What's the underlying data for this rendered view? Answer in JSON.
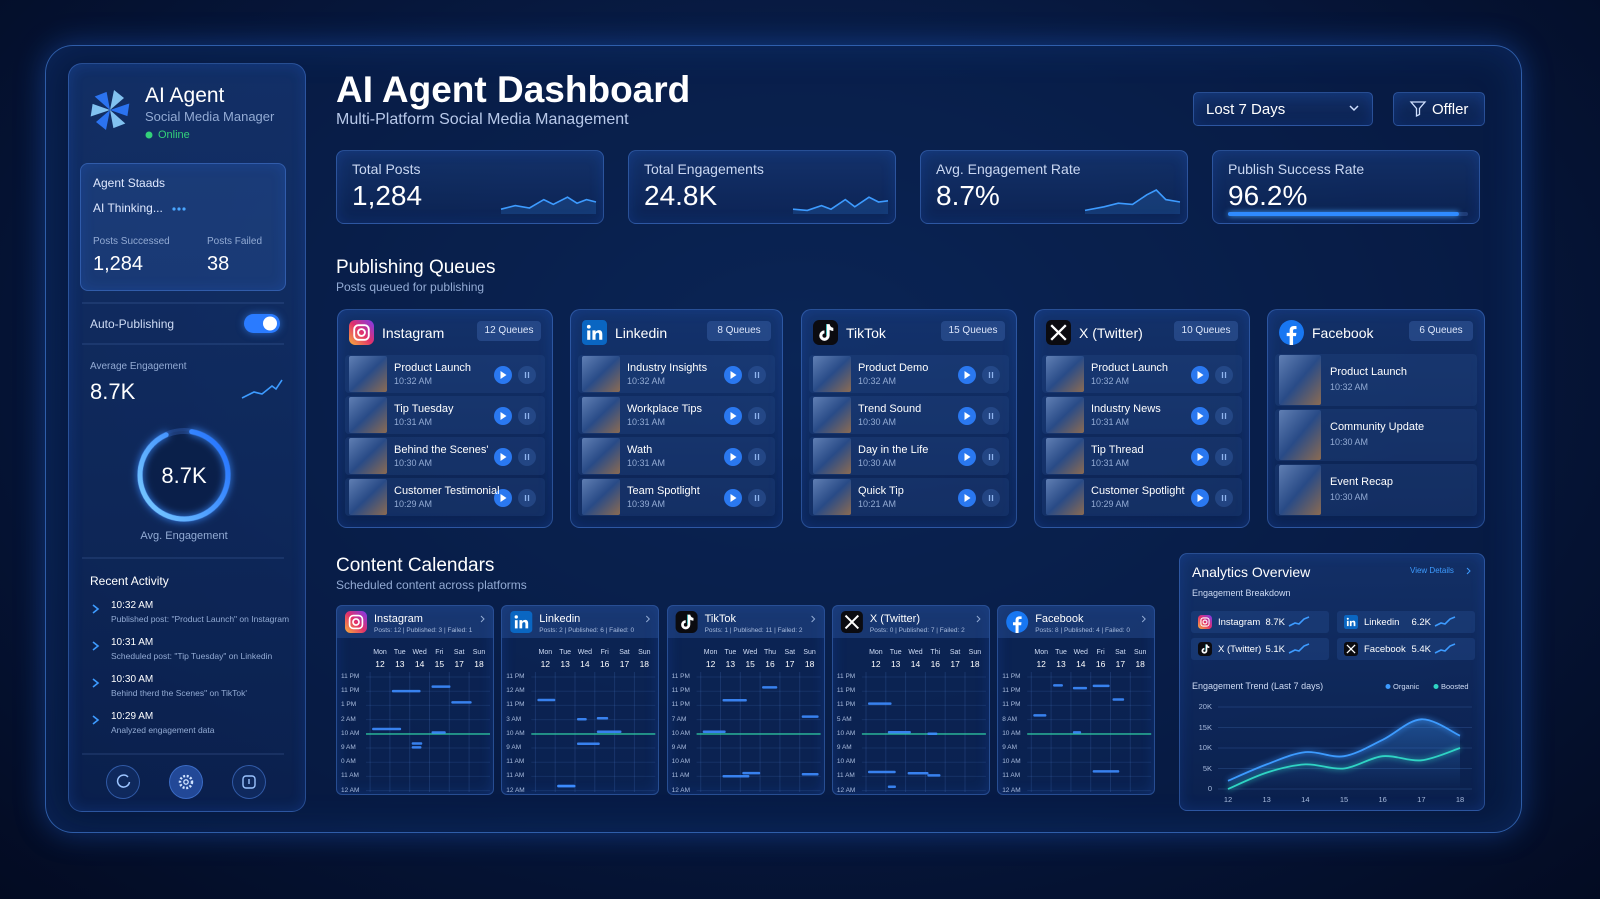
{
  "sidebar": {
    "title": "AI Agent",
    "subtitle": "Social Media Manager",
    "status": "Online",
    "agent_status": {
      "title": "Agent Staads",
      "state": "AI Thinking...",
      "stats": [
        {
          "label": "Posts Successed",
          "value": "1,284"
        },
        {
          "label": "Posts Failed",
          "value": "38"
        }
      ]
    },
    "auto_publishing": {
      "label": "Auto-Publishing",
      "enabled": true
    },
    "average_engagement": {
      "label": "Average Engagement",
      "value": "8.7K"
    },
    "gauge": {
      "value": "8.7K",
      "label": "Avg. Engagement"
    },
    "recent_activity": {
      "title": "Recent Activity",
      "items": [
        {
          "time": "10:32 AM",
          "text": "Published post: \"Product Launch\" on Instagram"
        },
        {
          "time": "10:31 AM",
          "text": "Scheduled post: \"Tip Tuesday\" on Linkedin"
        },
        {
          "time": "10:30 AM",
          "text": "Behind therd the Scenes\" on TikTok'"
        },
        {
          "time": "10:29 AM",
          "text": "Analyzed engagement data"
        }
      ]
    }
  },
  "header": {
    "title": "AI Agent Dashboard",
    "subtitle": "Multi-Platform Social Media Management",
    "range": "Lost 7 Days",
    "filter": "Offler"
  },
  "kpis": [
    {
      "label": "Total Posts",
      "value": "1,284"
    },
    {
      "label": "Total Engagements",
      "value": "24.8K"
    },
    {
      "label": "Avg. Engagement Rate",
      "value": "8.7%"
    },
    {
      "label": "Publish Success Rate",
      "value": 96.2,
      "value_label": "96.2%"
    }
  ],
  "queues": {
    "title": "Publishing Queues",
    "subtitle": "Posts queued for publishing",
    "platforms": [
      {
        "name": "Instagram",
        "count": "12 Queues",
        "items": [
          {
            "title": "Product Launch",
            "time": "10:32 AM"
          },
          {
            "title": "Tip Tuesday",
            "time": "10:31 AM"
          },
          {
            "title": "Behind the Scenes'",
            "time": "10:30 AM"
          },
          {
            "title": "Customer Testimonial",
            "time": "10:29 AM"
          }
        ]
      },
      {
        "name": "Linkedin",
        "count": "8 Queues",
        "items": [
          {
            "title": "Industry Insights",
            "time": "10:32 AM"
          },
          {
            "title": "Workplace Tips",
            "time": "10:31 AM"
          },
          {
            "title": "Wath",
            "time": "10:31 AM"
          },
          {
            "title": "Team Spotlight",
            "time": "10:39 AM"
          }
        ]
      },
      {
        "name": "TikTok",
        "count": "15 Queues",
        "items": [
          {
            "title": "Product Demo",
            "time": "10:32 AM"
          },
          {
            "title": "Trend Sound",
            "time": "10:30 AM"
          },
          {
            "title": "Day in the Life",
            "time": "10:30 AM"
          },
          {
            "title": "Quick Tip",
            "time": "10:21 AM"
          }
        ]
      },
      {
        "name": "X (Twitter)",
        "count": "10 Queues",
        "items": [
          {
            "title": "Product Launch",
            "time": "10:32 AM"
          },
          {
            "title": "Industry News",
            "time": "10:31 AM"
          },
          {
            "title": "Tip Thread",
            "time": "10:31 AM"
          },
          {
            "title": "Customer Spotlight",
            "time": "10:29 AM"
          }
        ]
      },
      {
        "name": "Facebook",
        "count": "6 Queues",
        "items": [
          {
            "title": "Product Launch",
            "time": "10:32 AM"
          },
          {
            "title": "Community Update",
            "time": "10:30 AM"
          },
          {
            "title": "Event Recap",
            "time": "10:30 AM"
          }
        ]
      }
    ]
  },
  "calendars": {
    "title": "Content Calendars",
    "subtitle": "Scheduled content across platforms",
    "platforms": [
      {
        "name": "Instagram",
        "stats": "Posts: 12 | Published: 3 | Failed: 1",
        "days": [
          "Mon",
          "Tue",
          "Wed",
          "Fri",
          "Sat",
          "Sun"
        ],
        "dates": [
          "12",
          "13",
          "14",
          "15",
          "17",
          "18"
        ],
        "hours": [
          "11 PM",
          "11 PM",
          "1 PM",
          "2 AM",
          "10 AM",
          "9 AM",
          "0 AM",
          "11 AM",
          "12 AM"
        ]
      },
      {
        "name": "Linkedin",
        "stats": "Posts: 2 | Published: 6 | Failed: 0",
        "days": [
          "Mon",
          "Tue",
          "Wed",
          "Fri",
          "Sat",
          "Sun"
        ],
        "dates": [
          "12",
          "13",
          "14",
          "16",
          "17",
          "18"
        ],
        "hours": [
          "11 PM",
          "12 AM",
          "11 PM",
          "3 AM",
          "10 AM",
          "9 AM",
          "11 AM",
          "11 AM",
          "12 AM"
        ]
      },
      {
        "name": "TikTok",
        "stats": "Posts: 1 | Published: 11 | Failed: 2",
        "days": [
          "Mon",
          "Tue",
          "Wed",
          "Thu",
          "Sat",
          "Sun"
        ],
        "dates": [
          "12",
          "13",
          "15",
          "16",
          "17",
          "18"
        ],
        "hours": [
          "11 PM",
          "11 PM",
          "11 PM",
          "7 AM",
          "10 AM",
          "9 AM",
          "10 AM",
          "11 AM",
          "12 AM"
        ]
      },
      {
        "name": "X (Twitter)",
        "stats": "Posts: 0 | Published: 7 | Failed: 2",
        "days": [
          "Mon",
          "Tue",
          "Wed",
          "Thi",
          "Sat",
          "Sun"
        ],
        "dates": [
          "12",
          "13",
          "14",
          "16",
          "17",
          "18"
        ],
        "hours": [
          "11 PM",
          "11 PM",
          "11 PM",
          "5 AM",
          "10 AM",
          "9 AM",
          "10 AM",
          "11 AM",
          "12 AM"
        ]
      },
      {
        "name": "Facebook",
        "stats": "Posts: 8 | Published: 4 | Failed: 0",
        "days": [
          "Mon",
          "Tue",
          "Wed",
          "Fri",
          "Sat",
          "Sun"
        ],
        "dates": [
          "12",
          "13",
          "14",
          "16",
          "17",
          "18"
        ],
        "hours": [
          "11 PM",
          "11 PM",
          "11 PM",
          "8 AM",
          "10 AM",
          "9 AM",
          "10 AM",
          "11 AM",
          "12 AM"
        ]
      }
    ]
  },
  "analytics": {
    "title": "Analytics Overview",
    "link": "View Details",
    "breakdown_title": "Engagement Breakdown",
    "breakdown": [
      {
        "name": "Instagram",
        "value": "8.7K"
      },
      {
        "name": "Linkedin",
        "value": "6.2K"
      },
      {
        "name": "X (Twitter)",
        "value": "5.1K"
      },
      {
        "name": "Facebook",
        "value": "5.4K"
      }
    ],
    "trend": {
      "type": "line",
      "title": "Engagement Trend (Last 7 days)",
      "categories": [
        "12",
        "13",
        "14",
        "15",
        "16",
        "17",
        "18"
      ],
      "series": [
        {
          "name": "Organic",
          "color": "#3d9bff",
          "values": [
            2000,
            6000,
            9000,
            8000,
            12000,
            17000,
            13000
          ]
        },
        {
          "name": "Boosted",
          "color": "#2fd4c4",
          "values": [
            0,
            4000,
            6000,
            5000,
            8000,
            7000,
            10000
          ]
        }
      ],
      "ylim": [
        0,
        20000
      ],
      "yticks": [
        0,
        {
          "value": 5000,
          "label": "5K"
        },
        {
          "value": 10000,
          "label": "10K"
        },
        {
          "value": 15000,
          "label": "15K"
        },
        {
          "value": 20000,
          "label": "20K"
        }
      ],
      "grid": true
    }
  }
}
